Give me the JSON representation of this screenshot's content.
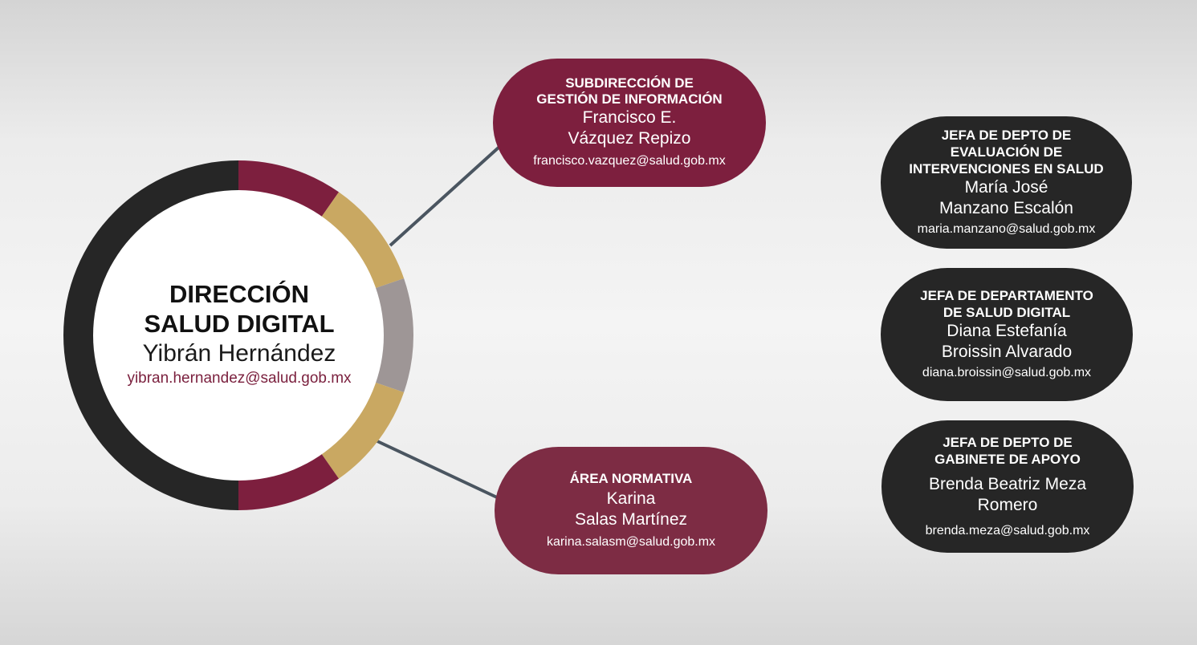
{
  "colors": {
    "maroon": "#7d1f3e",
    "maroon_light": "#7d2c44",
    "gold": "#c9a862",
    "gray": "#9e9696",
    "dark": "#262626",
    "line": "#4a5560"
  },
  "center": {
    "title_line1": "DIRECCIÓN",
    "title_line2": "SALUD DIGITAL",
    "name": "Yibrán Hernández",
    "email": "yibran.hernandez@salud.gob.mx"
  },
  "units": [
    {
      "title": "SUBDIRECCIÓN DE\nGESTIÓN DE INFORMACIÓN",
      "name": "Francisco E.\nVázquez Repizo",
      "email": "francisco.vazquez@salud.gob.mx"
    },
    {
      "title": "ÁREA NORMATIVA",
      "name": "Karina\nSalas Martínez",
      "email": "karina.salasm@salud.gob.mx"
    },
    {
      "title": "JEFA DE DEPTO DE\nEVALUACIÓN DE\nINTERVENCIONES EN SALUD",
      "name": "María José\nManzano Escalón",
      "email": "maria.manzano@salud.gob.mx"
    },
    {
      "title": "JEFA DE DEPARTAMENTO\nDE SALUD DIGITAL",
      "name": "Diana Estefanía\nBroissin Alvarado",
      "email": "diana.broissin@salud.gob.mx"
    },
    {
      "title": "JEFA DE DEPTO DE\nGABINETE DE APOYO",
      "name": "Brenda Beatriz Meza\nRomero",
      "email": "brenda.meza@salud.gob.mx"
    }
  ]
}
